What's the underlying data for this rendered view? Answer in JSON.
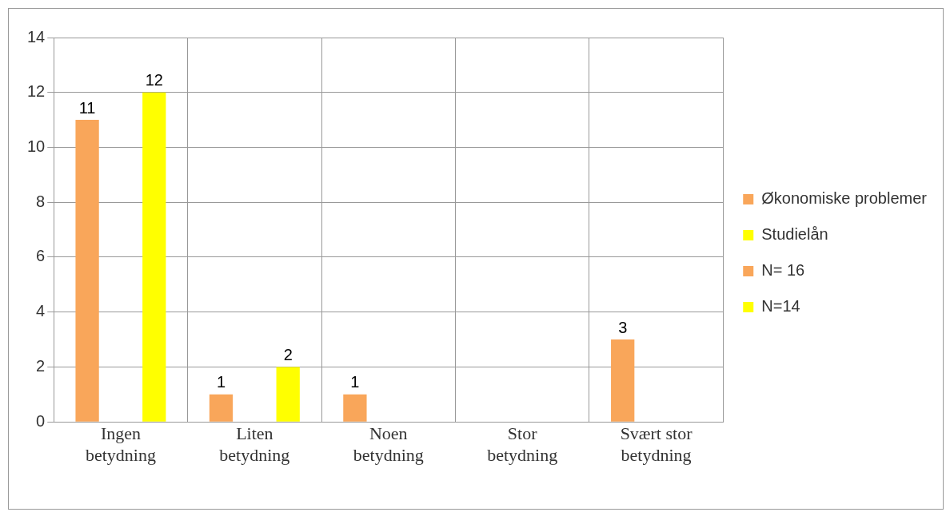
{
  "chart_data": {
    "type": "bar",
    "categories": [
      "Ingen betydning",
      "Liten betydning",
      "Noen betydning",
      "Stor betydning",
      "Svært stor betydning"
    ],
    "series": [
      {
        "name": "Økonomiske problemer",
        "color": "#f9a65a",
        "values": [
          11,
          1,
          1,
          null,
          3
        ]
      },
      {
        "name": "Studielån",
        "color": "#ffff00",
        "values": [
          12,
          2,
          null,
          null,
          null
        ]
      },
      {
        "name": "N= 16",
        "color": "#f9a65a",
        "values": [
          null,
          null,
          null,
          null,
          null
        ]
      },
      {
        "name": "N=14",
        "color": "#ffff00",
        "values": [
          null,
          null,
          null,
          null,
          null
        ]
      }
    ],
    "ylim": [
      0,
      14
    ],
    "yticks": [
      0,
      2,
      4,
      6,
      8,
      10,
      12,
      14
    ],
    "grid": "y",
    "legend": "right",
    "data_labels": true
  }
}
